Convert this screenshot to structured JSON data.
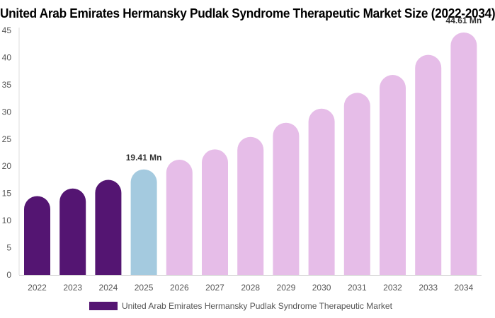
{
  "title": "United Arab Emirates Hermansky Pudlak Syndrome Therapeutic Market Size (2022-2034)",
  "chart_data": {
    "type": "bar",
    "categories": [
      "2022",
      "2023",
      "2024",
      "2025",
      "2026",
      "2027",
      "2028",
      "2029",
      "2030",
      "2031",
      "2032",
      "2033",
      "2034"
    ],
    "values": [
      14.5,
      15.9,
      17.5,
      19.41,
      21.2,
      23.1,
      25.4,
      28.0,
      30.6,
      33.5,
      36.8,
      40.5,
      44.61
    ],
    "bar_colors": [
      "#541572",
      "#541572",
      "#541572",
      "#a4cadf",
      "#e6bde8",
      "#e6bde8",
      "#e6bde8",
      "#e6bde8",
      "#e6bde8",
      "#e6bde8",
      "#e6bde8",
      "#e6bde8",
      "#e6bde8"
    ],
    "data_labels": [
      {
        "index": 3,
        "text": "19.41 Mn"
      },
      {
        "index": 12,
        "text": "44.61 Mn"
      }
    ],
    "yticks": [
      0,
      5,
      10,
      15,
      20,
      25,
      30,
      35,
      40,
      45
    ],
    "ylim": [
      0,
      45
    ],
    "grid": false,
    "legend_position": "bottom",
    "series": [
      {
        "name": "United Arab Emirates Hermansky Pudlak Syndrome Therapeutic Market",
        "color": "#541572"
      }
    ]
  }
}
